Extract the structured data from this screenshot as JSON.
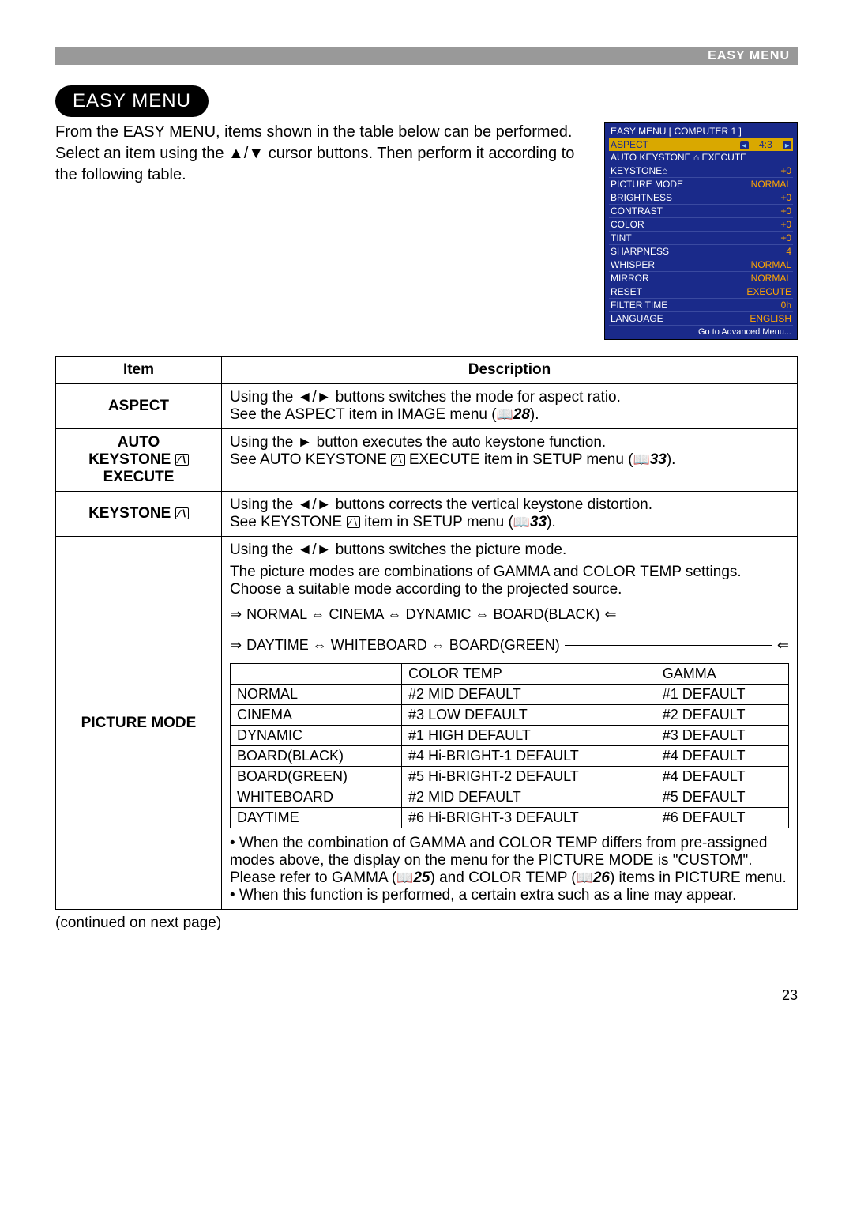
{
  "header": {
    "label": "EASY MENU"
  },
  "section": {
    "title": "EASY MENU"
  },
  "intro": {
    "line1": "From the EASY MENU, items shown in the table below can be performed.",
    "line2": "Select an item using the ▲/▼ cursor buttons. Then perform it according to the following table."
  },
  "osd": {
    "title": "EASY MENU [ COMPUTER 1 ]",
    "rows": [
      {
        "label": "ASPECT",
        "value": "4:3",
        "selected": true
      },
      {
        "label": "AUTO KEYSTONE ⌂ EXECUTE",
        "value": ""
      },
      {
        "label": "KEYSTONE⌂",
        "value": "+0"
      },
      {
        "label": "PICTURE MODE",
        "value": "NORMAL"
      },
      {
        "label": "BRIGHTNESS",
        "value": "+0"
      },
      {
        "label": "CONTRAST",
        "value": "+0"
      },
      {
        "label": "COLOR",
        "value": "+0"
      },
      {
        "label": "TINT",
        "value": "+0"
      },
      {
        "label": "SHARPNESS",
        "value": "4"
      },
      {
        "label": "WHISPER",
        "value": "NORMAL"
      },
      {
        "label": "MIRROR",
        "value": "NORMAL"
      },
      {
        "label": "RESET",
        "value": "EXECUTE"
      },
      {
        "label": "FILTER TIME",
        "value": "0h"
      },
      {
        "label": "LANGUAGE",
        "value": "ENGLISH"
      }
    ],
    "footer": "Go to Advanced Menu..."
  },
  "table": {
    "headers": {
      "item": "Item",
      "desc": "Description"
    },
    "rows": {
      "aspect": {
        "label": "ASPECT",
        "desc1": "Using the ◄/► buttons switches the mode for aspect ratio.",
        "desc2a": "See the ASPECT item in IMAGE menu (",
        "desc2ref": "28",
        "desc2b": ")."
      },
      "autokeystone": {
        "label1": "AUTO",
        "label2a": "KEYSTONE ",
        "label2b": "",
        "label3": "EXECUTE",
        "desc1": "Using the ► button executes the auto keystone function.",
        "desc2a": "See AUTO KEYSTONE ",
        "desc2mid": " EXECUTE item in SETUP menu (",
        "desc2ref": "33",
        "desc2b": ")."
      },
      "keystone": {
        "label": "KEYSTONE ",
        "desc1": "Using the ◄/► buttons corrects the vertical keystone distortion.",
        "desc2a": "See KEYSTONE ",
        "desc2mid": " item in SETUP menu (",
        "desc2ref": "33",
        "desc2b": ")."
      },
      "picmode": {
        "label": "PICTURE MODE",
        "p1": "Using the ◄/► buttons switches the picture mode.",
        "p2": "The picture modes are combinations of GAMMA and COLOR TEMP settings. Choose a suitable mode according to the projected source.",
        "cycle1": "NORMAL ⇔ CINEMA ⇔ DYNAMIC ⇔ BOARD(BLACK)",
        "cycle2": "DAYTIME ⇔ WHITEBOARD ⇔ BOARD(GREEN)",
        "inner": {
          "h1": "",
          "h2": "COLOR TEMP",
          "h3": "GAMMA",
          "rows": [
            [
              "NORMAL",
              "#2 MID DEFAULT",
              "#1 DEFAULT"
            ],
            [
              "CINEMA",
              "#3 LOW DEFAULT",
              "#2 DEFAULT"
            ],
            [
              "DYNAMIC",
              "#1 HIGH DEFAULT",
              "#3 DEFAULT"
            ],
            [
              "BOARD(BLACK)",
              "#4 Hi-BRIGHT-1 DEFAULT",
              "#4 DEFAULT"
            ],
            [
              "BOARD(GREEN)",
              "#5 Hi-BRIGHT-2 DEFAULT",
              "#4 DEFAULT"
            ],
            [
              "WHITEBOARD",
              "#2 MID DEFAULT",
              "#5 DEFAULT"
            ],
            [
              "DAYTIME",
              "#6 Hi-BRIGHT-3 DEFAULT",
              "#6 DEFAULT"
            ]
          ]
        },
        "note1a": "• When the combination of GAMMA and COLOR TEMP differs from pre-assigned modes above, the display on the menu for the PICTURE MODE is \"CUSTOM\". Please refer to GAMMA (",
        "note1ref1": "25",
        "note1b": ") and COLOR TEMP (",
        "note1ref2": "26",
        "note1c": ") items in PICTURE menu.",
        "note2": "• When this function is performed, a certain extra such as a line may appear."
      }
    }
  },
  "continued": "(continued on next page)",
  "pageNumber": "23",
  "colors": {
    "headerBar": "#999999",
    "pillBg": "#000000",
    "osdBg": "#1a2a8a",
    "osdSelected": "#d9a800",
    "osdValue": "#ffa500"
  }
}
